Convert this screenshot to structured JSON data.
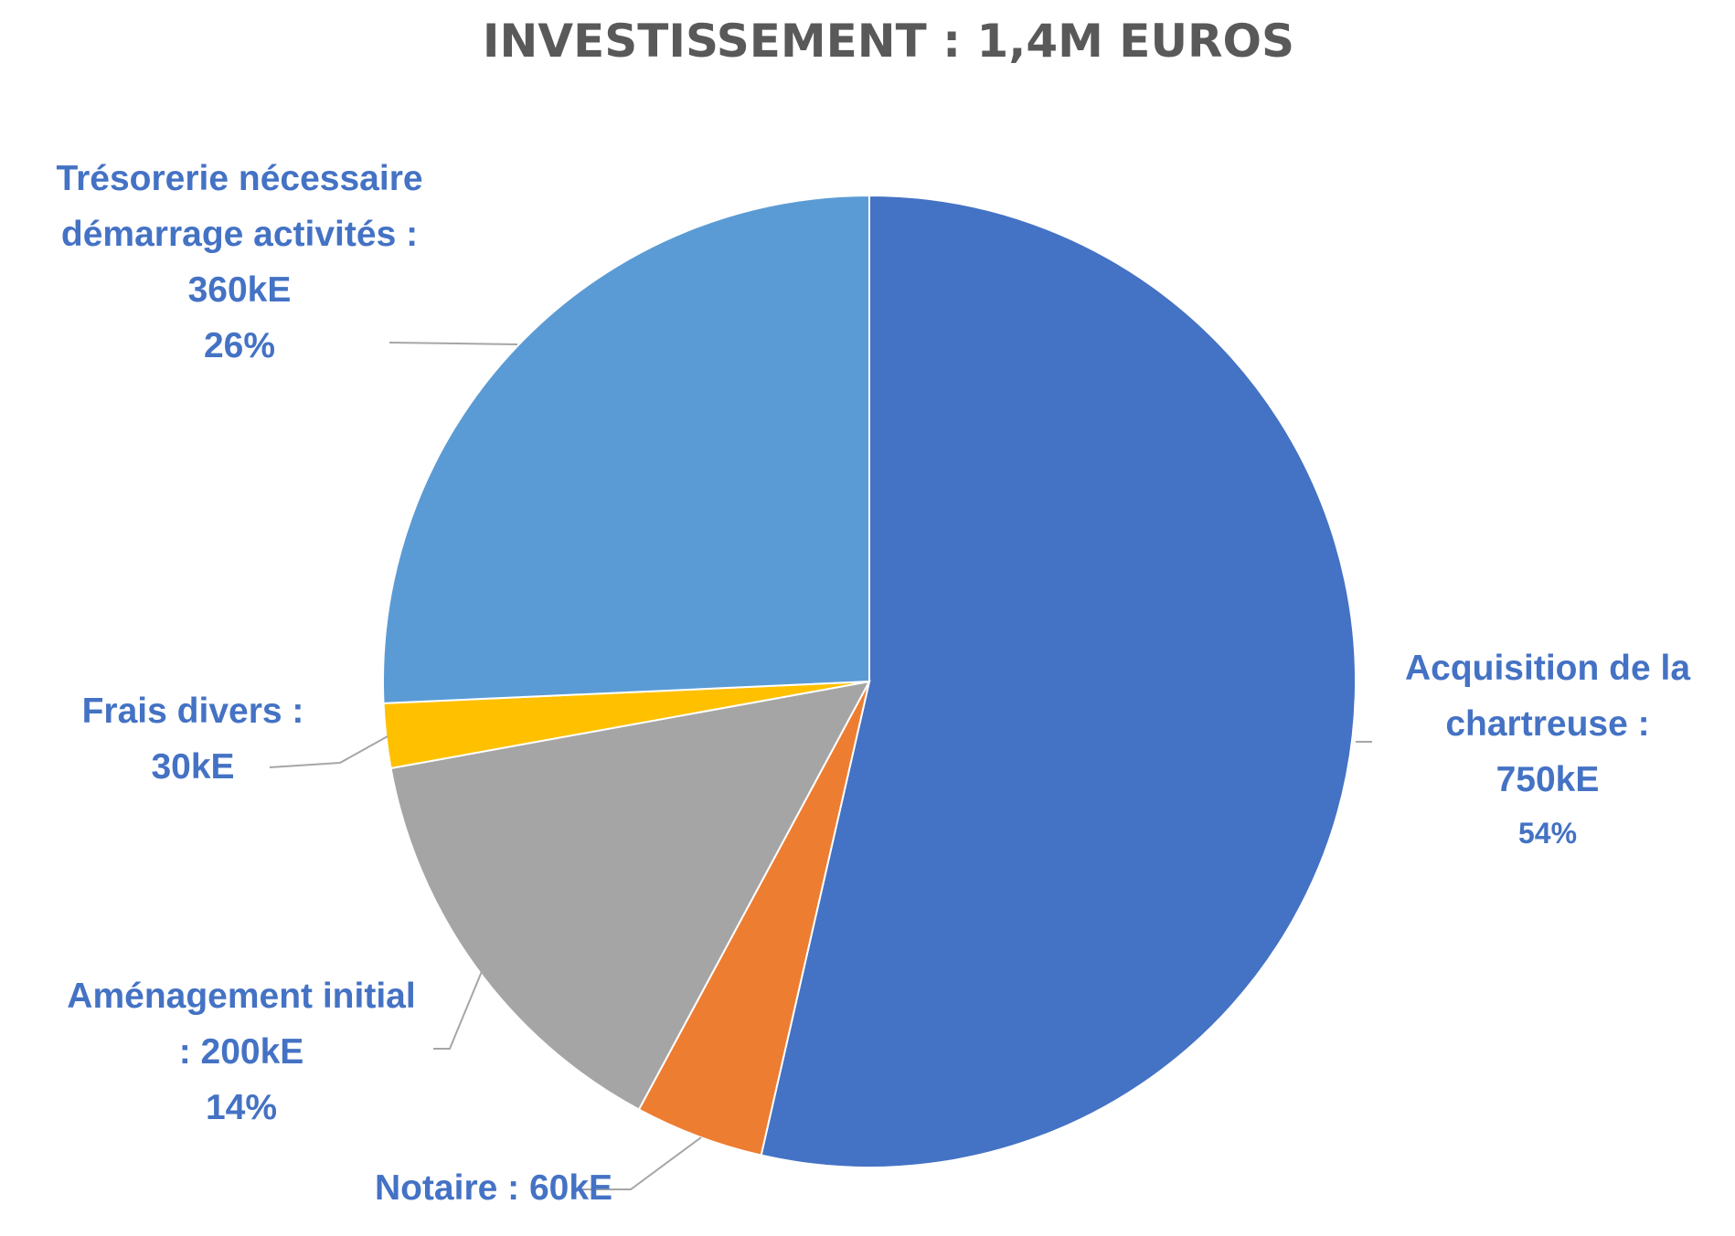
{
  "chart_data": {
    "type": "pie",
    "title": "INVESTISSEMENT : 1,4M EUROS",
    "start_angle_deg": 0,
    "direction": "clockwise",
    "legend": "none",
    "label_color": "#4472C4",
    "slices": [
      {
        "name": "Acquisition de la chartreuse",
        "value": 750,
        "unit": "kE",
        "percent": 54,
        "color": "#4472C4",
        "label_lines": [
          "Acquisition de la",
          "chartreuse :",
          "750kE",
          "54%"
        ]
      },
      {
        "name": "Notaire",
        "value": 60,
        "unit": "kE",
        "color": "#ED7D31",
        "label_lines": [
          "Notaire : 60kE"
        ]
      },
      {
        "name": "Aménagement initial",
        "value": 200,
        "unit": "kE",
        "percent": 14,
        "color": "#A5A5A5",
        "label_lines": [
          "Aménagement initial",
          ": 200kE",
          "14%"
        ]
      },
      {
        "name": "Frais divers",
        "value": 30,
        "unit": "kE",
        "color": "#FFC000",
        "label_lines": [
          "Frais divers :",
          "30kE"
        ]
      },
      {
        "name": "Trésorerie nécessaire démarrage activités",
        "value": 360,
        "unit": "kE",
        "percent": 26,
        "color": "#5B9BD5",
        "label_lines": [
          "Trésorerie nécessaire",
          "démarrage activités :",
          "360kE",
          "26%"
        ]
      }
    ]
  }
}
